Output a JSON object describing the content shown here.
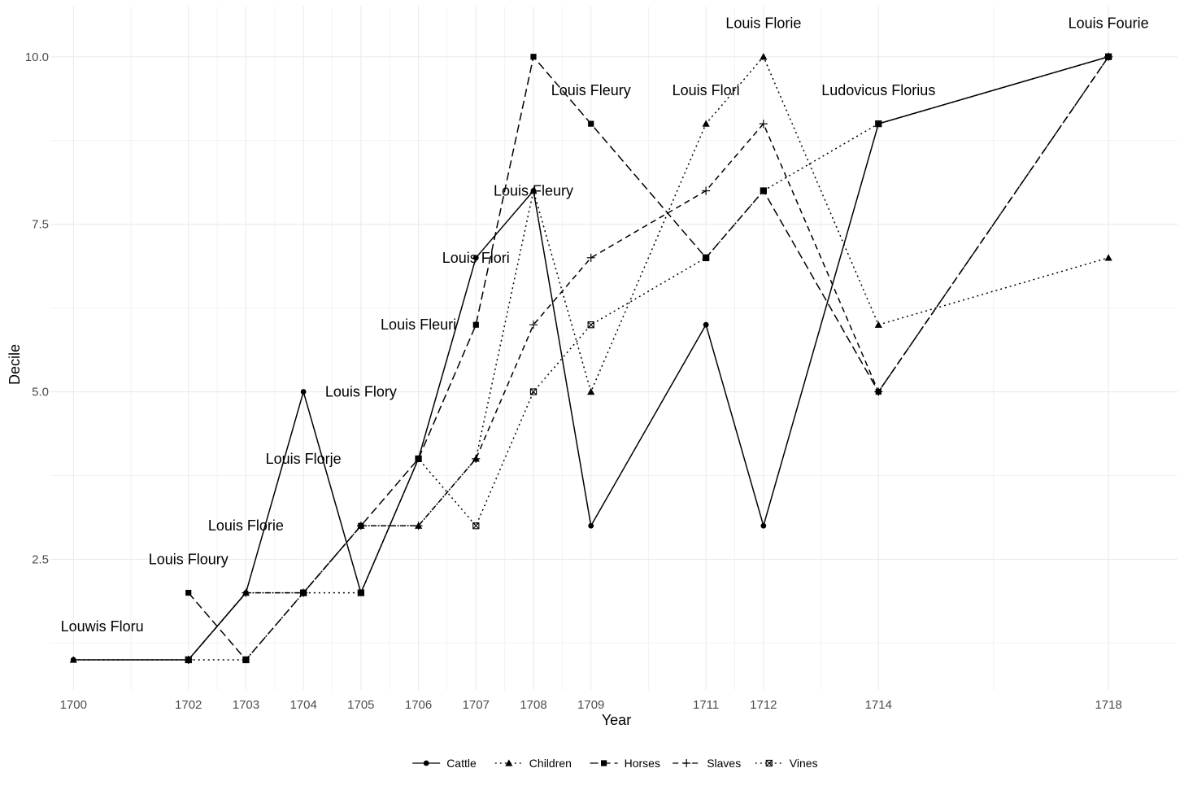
{
  "chart_data": {
    "type": "line",
    "xlabel": "Year",
    "ylabel": "Decile",
    "x_ticks": [
      1700,
      1702,
      1703,
      1704,
      1705,
      1706,
      1707,
      1708,
      1709,
      1711,
      1712,
      1714,
      1718
    ],
    "y_ticks": [
      "2.5",
      "5.0",
      "7.5",
      "10.0"
    ],
    "xlim": [
      1699.6,
      1719.2
    ],
    "ylim": [
      0.55,
      10.75
    ],
    "grid": true,
    "legend_position": "bottom",
    "series": [
      {
        "name": "Cattle",
        "marker": "circle",
        "dash": "solid",
        "x": [
          1700,
          1702,
          1703,
          1704,
          1705,
          1706,
          1707,
          1708,
          1709,
          1711,
          1712,
          1714,
          1718
        ],
        "y": [
          1,
          1,
          2,
          5,
          2,
          4,
          7,
          8,
          3,
          6,
          3,
          9,
          10
        ]
      },
      {
        "name": "Children",
        "marker": "triangle",
        "dash": "dotted",
        "x": [
          1700,
          1702,
          1703,
          1704,
          1705,
          1706,
          1707,
          1708,
          1709,
          1711,
          1712,
          1714,
          1718
        ],
        "y": [
          1,
          1,
          2,
          2,
          3,
          3,
          4,
          8,
          5,
          9,
          10,
          6,
          7
        ]
      },
      {
        "name": "Horses",
        "marker": "square",
        "dash": "longdash",
        "x": [
          1702,
          1703,
          1704,
          1705,
          1706,
          1707,
          1708,
          1709,
          1711,
          1712,
          1714,
          1718
        ],
        "y": [
          2,
          1,
          2,
          3,
          4,
          6,
          10,
          9,
          7,
          8,
          5,
          10
        ]
      },
      {
        "name": "Slaves",
        "marker": "plus",
        "dash": "dashed",
        "x": [
          1702,
          1703,
          1704,
          1705,
          1706,
          1707,
          1708,
          1709,
          1711,
          1712,
          1714,
          1718
        ],
        "y": [
          1,
          2,
          2,
          3,
          3,
          4,
          6,
          7,
          8,
          9,
          5,
          10
        ]
      },
      {
        "name": "Vines",
        "marker": "boxx",
        "dash": "dotted",
        "x": [
          1702,
          1703,
          1704,
          1705,
          1706,
          1707,
          1708,
          1709,
          1711,
          1712,
          1714,
          1718
        ],
        "y": [
          1,
          1,
          2,
          2,
          4,
          3,
          5,
          6,
          7,
          8,
          9,
          10
        ]
      }
    ],
    "annotations": [
      {
        "text": "Louwis Floru",
        "x": 1700.5,
        "y": 1.5
      },
      {
        "text": "Louis Floury",
        "x": 1702,
        "y": 2.5
      },
      {
        "text": "Louis Florie",
        "x": 1703,
        "y": 3
      },
      {
        "text": "Louis Florje",
        "x": 1704,
        "y": 4
      },
      {
        "text": "Louis Flory",
        "x": 1705,
        "y": 5
      },
      {
        "text": "Louis Fleuri",
        "x": 1706,
        "y": 6
      },
      {
        "text": "Louis Flori",
        "x": 1707,
        "y": 7
      },
      {
        "text": "Louis Fleury",
        "x": 1708,
        "y": 8
      },
      {
        "text": "Louis Fleury",
        "x": 1709,
        "y": 9.5
      },
      {
        "text": "Louis Flori",
        "x": 1711,
        "y": 9.5
      },
      {
        "text": "Louis Florie",
        "x": 1712,
        "y": 10.5
      },
      {
        "text": "Ludovicus Florius",
        "x": 1714,
        "y": 9.5
      },
      {
        "text": "Louis Fourie",
        "x": 1718,
        "y": 10.5
      }
    ]
  }
}
